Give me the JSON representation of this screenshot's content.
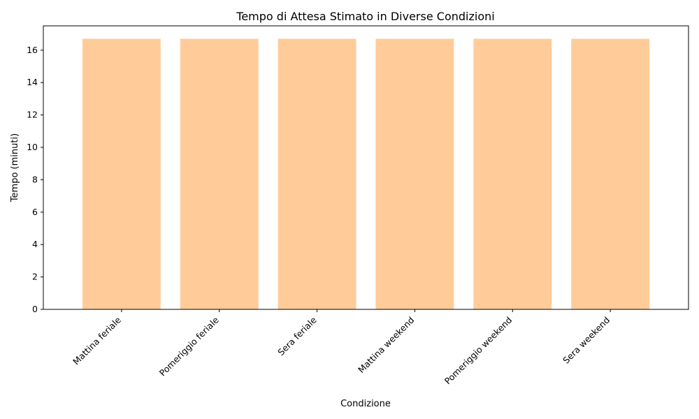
{
  "chart_data": {
    "type": "bar",
    "title": "Tempo di Attesa Stimato in Diverse Condizioni",
    "xlabel": "Condizione",
    "ylabel": "Tempo (minuti)",
    "categories": [
      "Mattina feriale",
      "Pomeriggio feriale",
      "Sera feriale",
      "Mattina weekend",
      "Pomeriggio weekend",
      "Sera weekend"
    ],
    "values": [
      16.7,
      16.7,
      16.7,
      16.7,
      16.7,
      16.7
    ],
    "ylim": [
      0,
      17.5
    ],
    "yticks": [
      0,
      2,
      4,
      6,
      8,
      10,
      12,
      14,
      16
    ],
    "bar_color": "#ffcc99",
    "grid": false,
    "legend": "none"
  }
}
